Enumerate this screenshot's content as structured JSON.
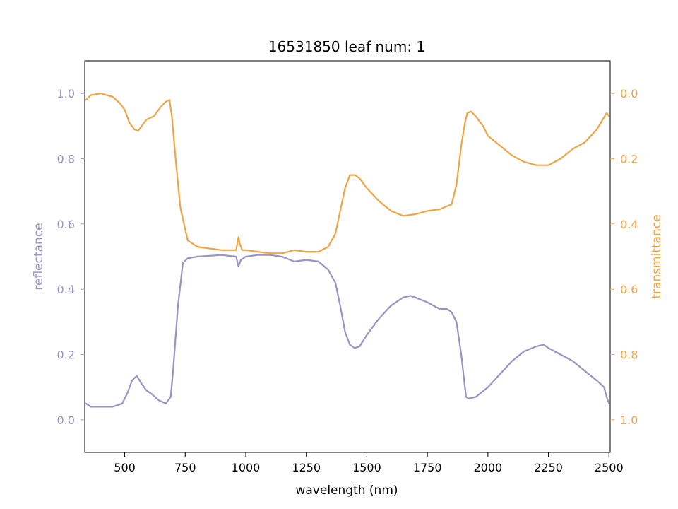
{
  "chart_data": {
    "type": "line",
    "title": "16531850 leaf num: 1",
    "xlabel": "wavelength (nm)",
    "ylabel_left": "reflectance",
    "ylabel_right": "transmittance",
    "xlim": [
      335,
      2505
    ],
    "ylim_left": [
      -0.1,
      1.1
    ],
    "ylim_right": [
      1.1,
      -0.1
    ],
    "right_axis_inverted": true,
    "x_ticks": [
      500,
      750,
      1000,
      1250,
      1500,
      1750,
      2000,
      2250,
      2500
    ],
    "y_ticks_left": [
      0.0,
      0.2,
      0.4,
      0.6,
      0.8,
      1.0
    ],
    "y_ticks_right": [
      0.0,
      0.2,
      0.4,
      0.6,
      0.8,
      1.0
    ],
    "grid": false,
    "colors": {
      "reflectance": "#9a93c4",
      "transmittance": "#eea546",
      "axis": "#000000"
    },
    "series": [
      {
        "name": "reflectance",
        "axis": "left",
        "color": "#9a93c4",
        "x": [
          340,
          360,
          400,
          450,
          490,
          510,
          530,
          550,
          570,
          590,
          610,
          640,
          670,
          690,
          700,
          720,
          740,
          760,
          800,
          900,
          960,
          970,
          980,
          1000,
          1050,
          1100,
          1150,
          1200,
          1250,
          1300,
          1340,
          1370,
          1390,
          1410,
          1430,
          1450,
          1470,
          1500,
          1550,
          1600,
          1650,
          1680,
          1700,
          1750,
          1800,
          1830,
          1850,
          1870,
          1890,
          1905,
          1910,
          1920,
          1950,
          2000,
          2050,
          2100,
          2150,
          2200,
          2230,
          2250,
          2300,
          2350,
          2400,
          2450,
          2480,
          2490,
          2500
        ],
        "y": [
          0.05,
          0.04,
          0.04,
          0.04,
          0.05,
          0.08,
          0.12,
          0.135,
          0.11,
          0.09,
          0.08,
          0.06,
          0.05,
          0.07,
          0.15,
          0.35,
          0.48,
          0.495,
          0.5,
          0.505,
          0.5,
          0.47,
          0.49,
          0.5,
          0.505,
          0.505,
          0.5,
          0.485,
          0.49,
          0.485,
          0.46,
          0.42,
          0.35,
          0.27,
          0.23,
          0.22,
          0.225,
          0.26,
          0.31,
          0.35,
          0.375,
          0.38,
          0.375,
          0.36,
          0.34,
          0.34,
          0.33,
          0.3,
          0.2,
          0.1,
          0.07,
          0.065,
          0.07,
          0.1,
          0.14,
          0.18,
          0.21,
          0.225,
          0.23,
          0.22,
          0.2,
          0.18,
          0.15,
          0.12,
          0.1,
          0.07,
          0.05
        ]
      },
      {
        "name": "transmittance",
        "axis": "right",
        "color": "#eea546",
        "x": [
          340,
          360,
          400,
          450,
          480,
          500,
          520,
          540,
          555,
          570,
          590,
          620,
          650,
          670,
          685,
          695,
          710,
          730,
          760,
          800,
          850,
          900,
          960,
          970,
          975,
          985,
          1000,
          1050,
          1100,
          1150,
          1200,
          1250,
          1300,
          1340,
          1370,
          1390,
          1410,
          1430,
          1450,
          1470,
          1500,
          1550,
          1600,
          1650,
          1700,
          1750,
          1800,
          1850,
          1870,
          1890,
          1905,
          1915,
          1930,
          1950,
          1980,
          2000,
          2050,
          2100,
          2150,
          2200,
          2250,
          2300,
          2350,
          2400,
          2450,
          2490,
          2500
        ],
        "y": [
          0.02,
          0.005,
          0.0,
          0.01,
          0.03,
          0.05,
          0.09,
          0.11,
          0.115,
          0.1,
          0.08,
          0.07,
          0.04,
          0.025,
          0.02,
          0.07,
          0.2,
          0.35,
          0.45,
          0.47,
          0.475,
          0.48,
          0.48,
          0.44,
          0.46,
          0.48,
          0.48,
          0.485,
          0.49,
          0.49,
          0.48,
          0.485,
          0.485,
          0.47,
          0.43,
          0.36,
          0.29,
          0.25,
          0.25,
          0.26,
          0.29,
          0.33,
          0.36,
          0.375,
          0.37,
          0.36,
          0.355,
          0.34,
          0.28,
          0.16,
          0.09,
          0.06,
          0.055,
          0.07,
          0.1,
          0.13,
          0.16,
          0.19,
          0.21,
          0.22,
          0.22,
          0.2,
          0.17,
          0.15,
          0.11,
          0.06,
          0.07
        ]
      }
    ]
  }
}
